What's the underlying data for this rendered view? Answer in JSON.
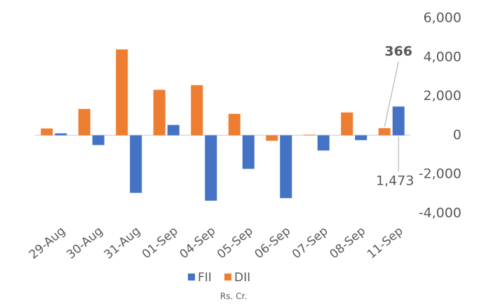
{
  "chart_data": {
    "type": "bar",
    "categories": [
      "29-Aug",
      "30-Aug",
      "31-Aug",
      "01-Sep",
      "04-Sep",
      "05-Sep",
      "06-Sep",
      "07-Sep",
      "08-Sep",
      "11-Sep"
    ],
    "series": [
      {
        "name": "FII",
        "color": "#4472c4",
        "values": [
          100,
          -500,
          -2950,
          530,
          -3350,
          -1720,
          -3220,
          -780,
          -250,
          1473
        ],
        "value_labels": [
          null,
          null,
          null,
          null,
          null,
          null,
          null,
          null,
          null,
          "1,473"
        ]
      },
      {
        "name": "DII",
        "color": "#ed7d31",
        "values": [
          350,
          1350,
          4400,
          2330,
          2570,
          1100,
          -280,
          30,
          1170,
          366
        ],
        "value_labels": [
          null,
          null,
          null,
          null,
          null,
          null,
          null,
          null,
          null,
          "366"
        ]
      }
    ],
    "ylim": [
      -4000,
      6000
    ],
    "yticks": [
      {
        "value": -4000,
        "label": "-4,000"
      },
      {
        "value": -2000,
        "label": "-2,000"
      },
      0,
      {
        "value": 2000,
        "label": "2,000"
      },
      {
        "value": 4000,
        "label": "4,000"
      },
      {
        "value": 6000,
        "label": "6,000"
      }
    ],
    "grid": false,
    "legend": "bottom",
    "note": "Rs. Cr."
  }
}
